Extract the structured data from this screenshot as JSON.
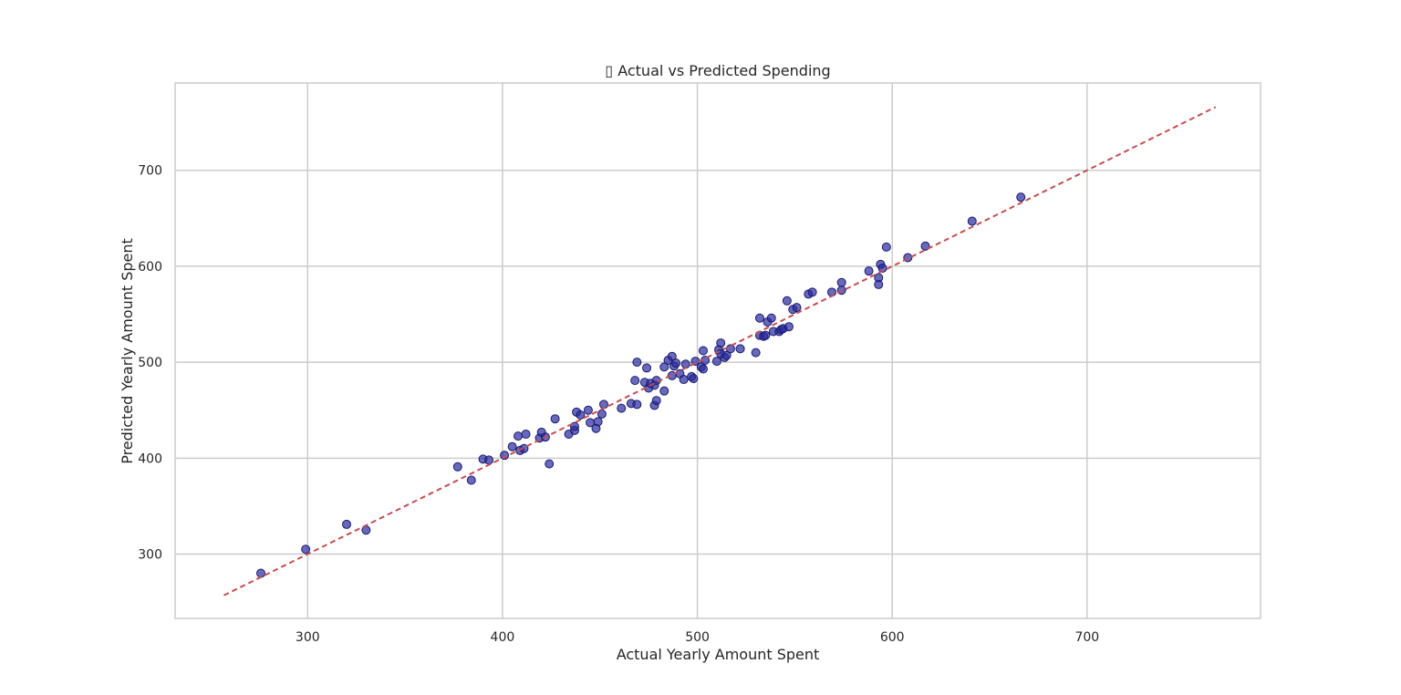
{
  "chart_data": {
    "type": "scatter",
    "title": "▯ Actual vs Predicted Spending",
    "xlabel": "Actual Yearly Amount Spent",
    "ylabel": "Predicted Yearly Amount Spent",
    "xlim": [
      232,
      789
    ],
    "ylim": [
      233,
      791
    ],
    "xticks": [
      300,
      400,
      500,
      600,
      700
    ],
    "yticks": [
      300,
      400,
      500,
      600,
      700
    ],
    "grid": true,
    "colors": {
      "points": "#2a2aa0",
      "point_edge": "#1a1a6e",
      "line": "#c44e52",
      "grid": "#cccccc",
      "frame": "#cccccc"
    },
    "reference_line": {
      "x": [
        257,
        766
      ],
      "y": [
        257,
        766
      ],
      "style": "dashed"
    },
    "series": [
      {
        "x": [
          276,
          299,
          320,
          330,
          377,
          384,
          390,
          393,
          401,
          405,
          408,
          409,
          411,
          412,
          419,
          420,
          422,
          424,
          427,
          434,
          437,
          437,
          438,
          440,
          444,
          445,
          448,
          449,
          451,
          452,
          461,
          466,
          468,
          469,
          469,
          473,
          474,
          475,
          476,
          478,
          478,
          479,
          479,
          483,
          483,
          485,
          487,
          487,
          488,
          489,
          491,
          493,
          494,
          497,
          498,
          499,
          502,
          503,
          503,
          504,
          510,
          511,
          512,
          512,
          514,
          515,
          517,
          522,
          530,
          532,
          532,
          534,
          535,
          536,
          538,
          539,
          542,
          543,
          544,
          546,
          547,
          549,
          551,
          557,
          559,
          569,
          574,
          574,
          588,
          593,
          593,
          594,
          595,
          597,
          608,
          617,
          641,
          666
        ],
        "y": [
          280,
          305,
          331,
          325,
          391,
          377,
          399,
          398,
          403,
          412,
          423,
          408,
          410,
          425,
          421,
          427,
          422,
          394,
          441,
          425,
          429,
          433,
          448,
          445,
          450,
          437,
          431,
          438,
          446,
          456,
          452,
          457,
          481,
          456,
          500,
          479,
          494,
          473,
          478,
          476,
          455,
          460,
          481,
          470,
          495,
          502,
          486,
          506,
          496,
          499,
          488,
          482,
          498,
          485,
          483,
          501,
          495,
          493,
          512,
          502,
          501,
          513,
          509,
          520,
          505,
          507,
          514,
          514,
          510,
          546,
          528,
          527,
          528,
          542,
          546,
          532,
          532,
          534,
          535,
          564,
          537,
          555,
          557,
          571,
          573,
          573,
          583,
          575,
          595,
          581,
          588,
          602,
          598,
          620,
          609,
          621,
          647,
          672
        ]
      }
    ]
  }
}
